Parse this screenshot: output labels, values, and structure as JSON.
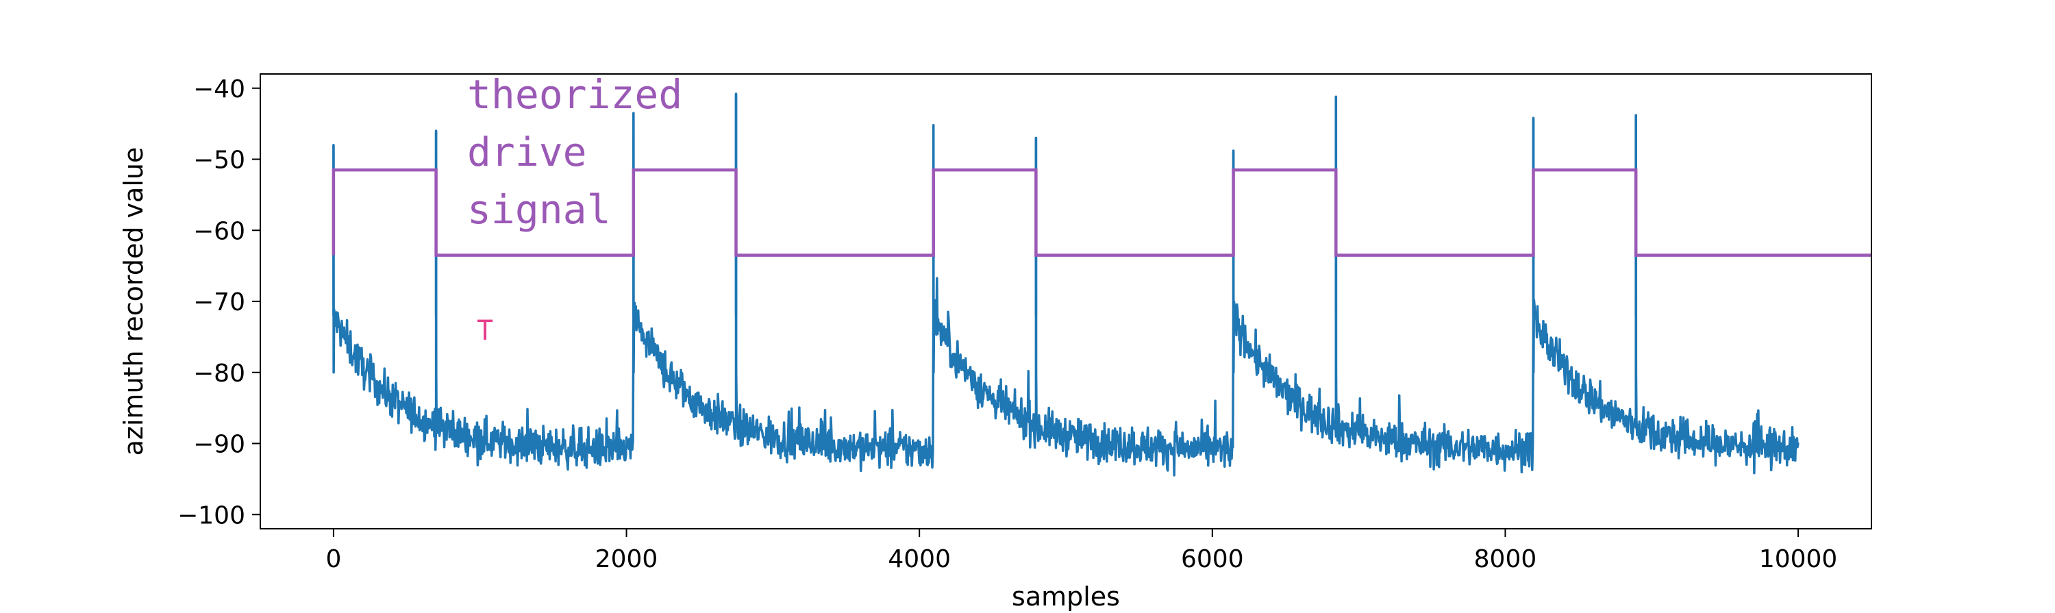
{
  "chart_data": {
    "type": "line",
    "title": "",
    "xlabel": "samples",
    "ylabel": "azimuth recorded value",
    "xlim": [
      -500,
      10500
    ],
    "ylim": [
      -102,
      -38
    ],
    "x_ticks": [
      0,
      2000,
      4000,
      6000,
      8000,
      10000
    ],
    "y_ticks": [
      -100,
      -90,
      -80,
      -70,
      -60,
      -50,
      -40
    ],
    "grid": false,
    "legend": "none",
    "series": [
      {
        "color": "#1f77b4",
        "description_values": {
          "cycle_starts": [
            0,
            2048,
            4096,
            6144,
            8192
          ],
          "cycle_length": 2048,
          "x_max": 10000,
          "start_level": -72,
          "settle_level": -91,
          "noise_amplitude": 3,
          "spike_peaks": [
            {
              "x": 0,
              "y": -48
            },
            {
              "x": 700,
              "y": -46
            },
            {
              "x": 2048,
              "y": -43.5
            },
            {
              "x": 2748,
              "y": -40.8
            },
            {
              "x": 4096,
              "y": -45.2
            },
            {
              "x": 4796,
              "y": -47
            },
            {
              "x": 6144,
              "y": -48.8
            },
            {
              "x": 6844,
              "y": -41.2
            },
            {
              "x": 8192,
              "y": -44.2
            },
            {
              "x": 8892,
              "y": -43.8
            }
          ]
        }
      },
      {
        "color": "#9b59b6",
        "step_x": [
          0,
          0,
          700,
          700,
          2048,
          2048,
          2748,
          2748,
          4096,
          4096,
          4796,
          4796,
          6144,
          6144,
          6844,
          6844,
          8192,
          8192,
          8892,
          8892,
          10500
        ],
        "step_y": [
          -63.5,
          -51.5,
          -51.5,
          -63.5,
          -63.5,
          -51.5,
          -51.5,
          -63.5,
          -63.5,
          -51.5,
          -51.5,
          -63.5,
          -63.5,
          -51.5,
          -51.5,
          -63.5,
          -63.5,
          -51.5,
          -51.5,
          -63.5,
          -63.5
        ]
      }
    ],
    "annotations": [
      {
        "lines": [
          "theorized",
          "drive",
          "signal"
        ],
        "color": "#9b59b6"
      },
      {
        "text": "T",
        "color": "#e83e8c"
      }
    ]
  }
}
